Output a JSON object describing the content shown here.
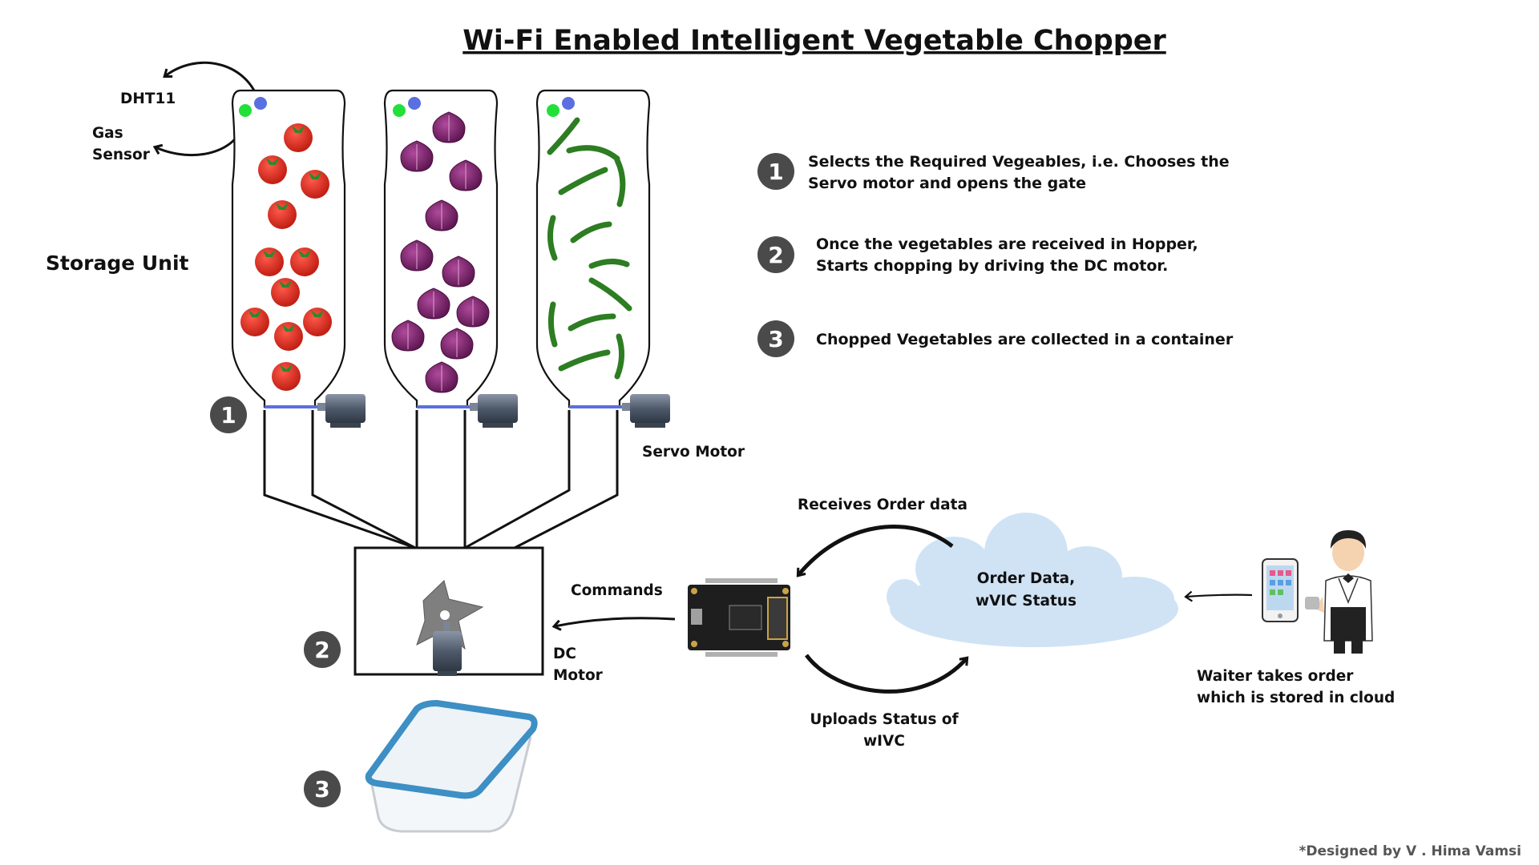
{
  "title": "Wi-Fi Enabled Intelligent Vegetable Chopper",
  "labels": {
    "dht11": "DHT11",
    "gas_sensor_line1": "Gas",
    "gas_sensor_line2": "Sensor",
    "storage_unit": "Storage Unit",
    "servo_motor": "Servo Motor",
    "dc_motor_line1": "DC",
    "dc_motor_line2": "Motor",
    "commands": "Commands",
    "receives_order_data": "Receives Order data",
    "uploads_status_line1": "Uploads Status of",
    "uploads_status_line2": "wIVC",
    "cloud_line1": "Order Data,",
    "cloud_line2": "wVIC Status",
    "waiter_line1": "Waiter takes order",
    "waiter_line2": "which is stored in cloud",
    "credit": "*Designed by V . Hima Vamsi"
  },
  "steps": [
    {
      "number": "1",
      "line1": "Selects the Required Vegeables, i.e. Chooses the",
      "line2": "Servo motor and opens the gate"
    },
    {
      "number": "2",
      "line1": "Once the vegetables are received in Hopper,",
      "line2": "Starts chopping by driving the DC motor."
    },
    {
      "number": "3",
      "line1": "Chopped Vegetables are collected in a container",
      "line2": ""
    }
  ],
  "diagram_badges": [
    "1",
    "2",
    "3"
  ],
  "colors": {
    "badge": "#4a4a4a",
    "tomato": "#d62a20",
    "onion": "#7a1f6b",
    "chili": "#2d7d22",
    "sensor_green": "#22e03a",
    "sensor_blue": "#5a70e0",
    "cloud": "#cfe3f5",
    "container_blue": "#3d8fc4",
    "board": "#1e1e1e"
  }
}
